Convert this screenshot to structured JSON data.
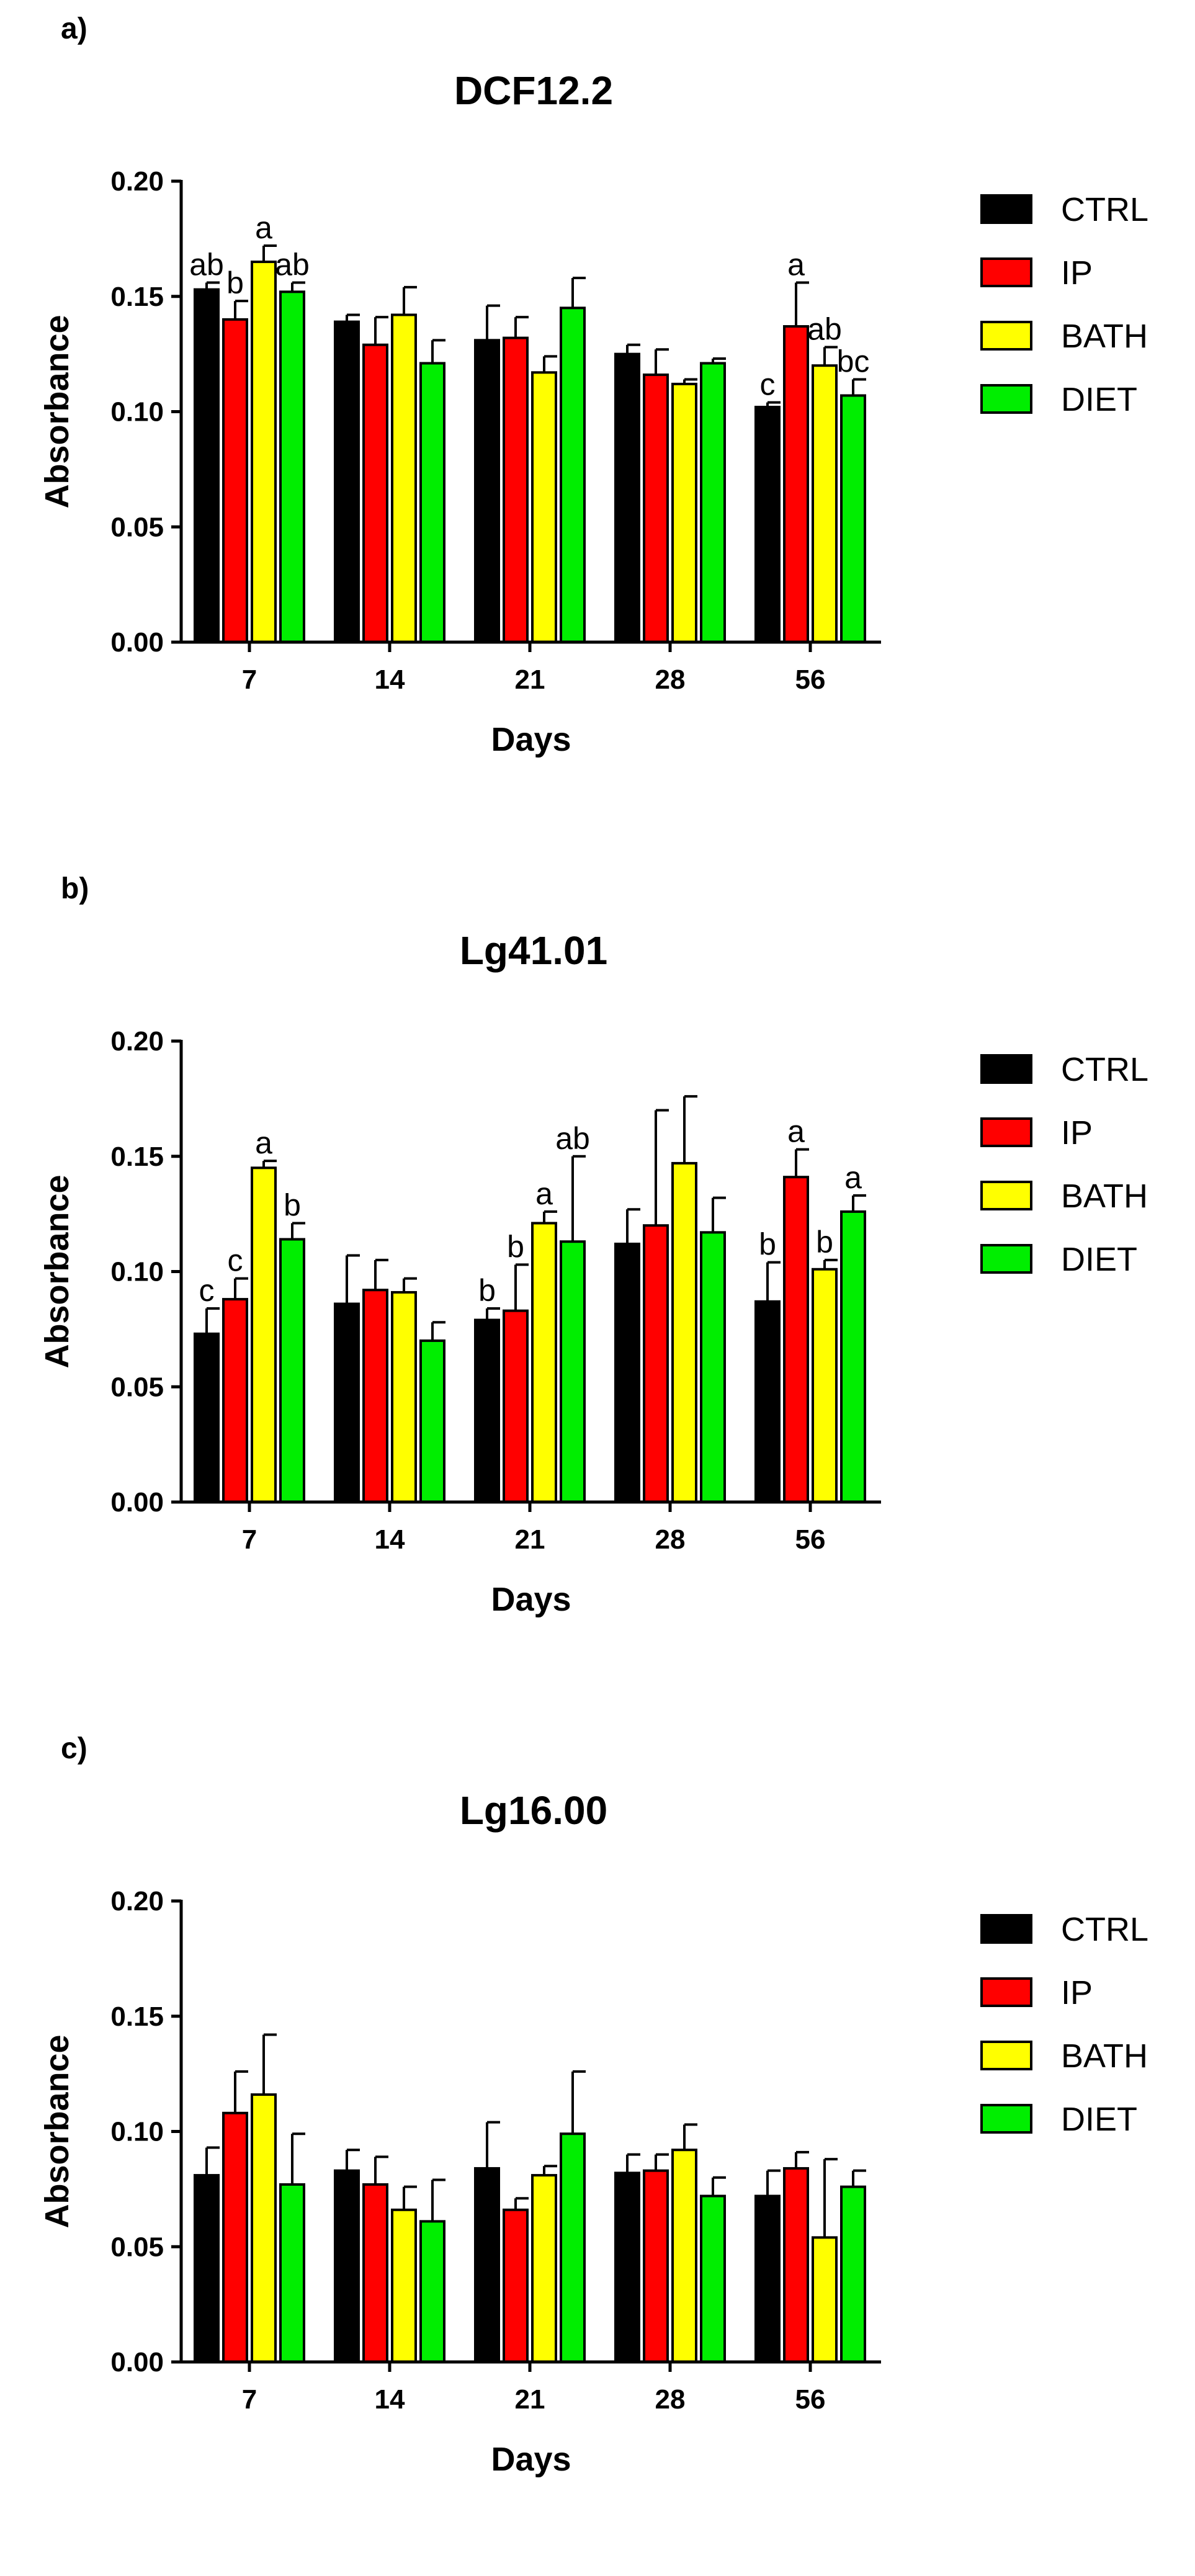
{
  "colors": {
    "CTRL": "#000000",
    "IP": "#ff0000",
    "BATH": "#ffff00",
    "DIET": "#00ee00"
  },
  "chart_data": [
    {
      "type": "bar",
      "panel_letter": "a)",
      "title": "DCF12.2",
      "xlabel": "Days",
      "ylabel": "Absorbance",
      "ylim": [
        0,
        0.2
      ],
      "yticks": [
        "0.00",
        "0.05",
        "0.10",
        "0.15",
        "0.20"
      ],
      "categories": [
        "7",
        "14",
        "21",
        "28",
        "56"
      ],
      "legend_position": "right",
      "series": [
        {
          "name": "CTRL",
          "values": [
            0.153,
            0.139,
            0.131,
            0.125,
            0.102
          ],
          "errors": [
            0.003,
            0.003,
            0.015,
            0.004,
            0.002
          ],
          "letters": [
            "ab",
            "",
            "",
            "",
            "c"
          ]
        },
        {
          "name": "IP",
          "values": [
            0.14,
            0.129,
            0.132,
            0.116,
            0.137
          ],
          "errors": [
            0.008,
            0.012,
            0.009,
            0.011,
            0.019
          ],
          "letters": [
            "b",
            "",
            "",
            "",
            "a"
          ]
        },
        {
          "name": "BATH",
          "values": [
            0.165,
            0.142,
            0.117,
            0.112,
            0.12
          ],
          "errors": [
            0.007,
            0.012,
            0.007,
            0.002,
            0.008
          ],
          "letters": [
            "a",
            "",
            "",
            "",
            "ab"
          ]
        },
        {
          "name": "DIET",
          "values": [
            0.152,
            0.121,
            0.145,
            0.121,
            0.107
          ],
          "errors": [
            0.004,
            0.01,
            0.013,
            0.002,
            0.007
          ],
          "letters": [
            "ab",
            "",
            "",
            "",
            "bc"
          ]
        }
      ]
    },
    {
      "type": "bar",
      "panel_letter": "b)",
      "title": "Lg41.01",
      "xlabel": "Days",
      "ylabel": "Absorbance",
      "ylim": [
        0,
        0.2
      ],
      "yticks": [
        "0.00",
        "0.05",
        "0.10",
        "0.15",
        "0.20"
      ],
      "categories": [
        "7",
        "14",
        "21",
        "28",
        "56"
      ],
      "legend_position": "right",
      "series": [
        {
          "name": "CTRL",
          "values": [
            0.073,
            0.086,
            0.079,
            0.112,
            0.087
          ],
          "errors": [
            0.011,
            0.021,
            0.005,
            0.015,
            0.017
          ],
          "letters": [
            "c",
            "",
            "b",
            "",
            "b"
          ]
        },
        {
          "name": "IP",
          "values": [
            0.088,
            0.092,
            0.083,
            0.12,
            0.141
          ],
          "errors": [
            0.009,
            0.013,
            0.02,
            0.05,
            0.012
          ],
          "letters": [
            "c",
            "",
            "b",
            "",
            "a"
          ]
        },
        {
          "name": "BATH",
          "values": [
            0.145,
            0.091,
            0.121,
            0.147,
            0.101
          ],
          "errors": [
            0.003,
            0.006,
            0.005,
            0.029,
            0.004
          ],
          "letters": [
            "a",
            "",
            "a",
            "",
            "b"
          ]
        },
        {
          "name": "DIET",
          "values": [
            0.114,
            0.07,
            0.113,
            0.117,
            0.126
          ],
          "errors": [
            0.007,
            0.008,
            0.037,
            0.015,
            0.007
          ],
          "letters": [
            "b",
            "",
            "ab",
            "",
            "a"
          ]
        }
      ]
    },
    {
      "type": "bar",
      "panel_letter": "c)",
      "title": "Lg16.00",
      "xlabel": "Days",
      "ylabel": "Absorbance",
      "ylim": [
        0,
        0.2
      ],
      "yticks": [
        "0.00",
        "0.05",
        "0.10",
        "0.15",
        "0.20"
      ],
      "categories": [
        "7",
        "14",
        "21",
        "28",
        "56"
      ],
      "legend_position": "right",
      "series": [
        {
          "name": "CTRL",
          "values": [
            0.081,
            0.083,
            0.084,
            0.082,
            0.072
          ],
          "errors": [
            0.012,
            0.009,
            0.02,
            0.008,
            0.011
          ],
          "letters": [
            "",
            "",
            "",
            "",
            ""
          ]
        },
        {
          "name": "IP",
          "values": [
            0.108,
            0.077,
            0.066,
            0.083,
            0.084
          ],
          "errors": [
            0.018,
            0.012,
            0.005,
            0.007,
            0.007
          ],
          "letters": [
            "",
            "",
            "",
            "",
            ""
          ]
        },
        {
          "name": "BATH",
          "values": [
            0.116,
            0.066,
            0.081,
            0.092,
            0.054
          ],
          "errors": [
            0.026,
            0.01,
            0.004,
            0.011,
            0.034
          ],
          "letters": [
            "",
            "",
            "",
            "",
            ""
          ]
        },
        {
          "name": "DIET",
          "values": [
            0.077,
            0.061,
            0.099,
            0.072,
            0.076
          ],
          "errors": [
            0.022,
            0.018,
            0.027,
            0.008,
            0.007
          ],
          "letters": [
            "",
            "",
            "",
            "",
            ""
          ]
        }
      ]
    }
  ]
}
